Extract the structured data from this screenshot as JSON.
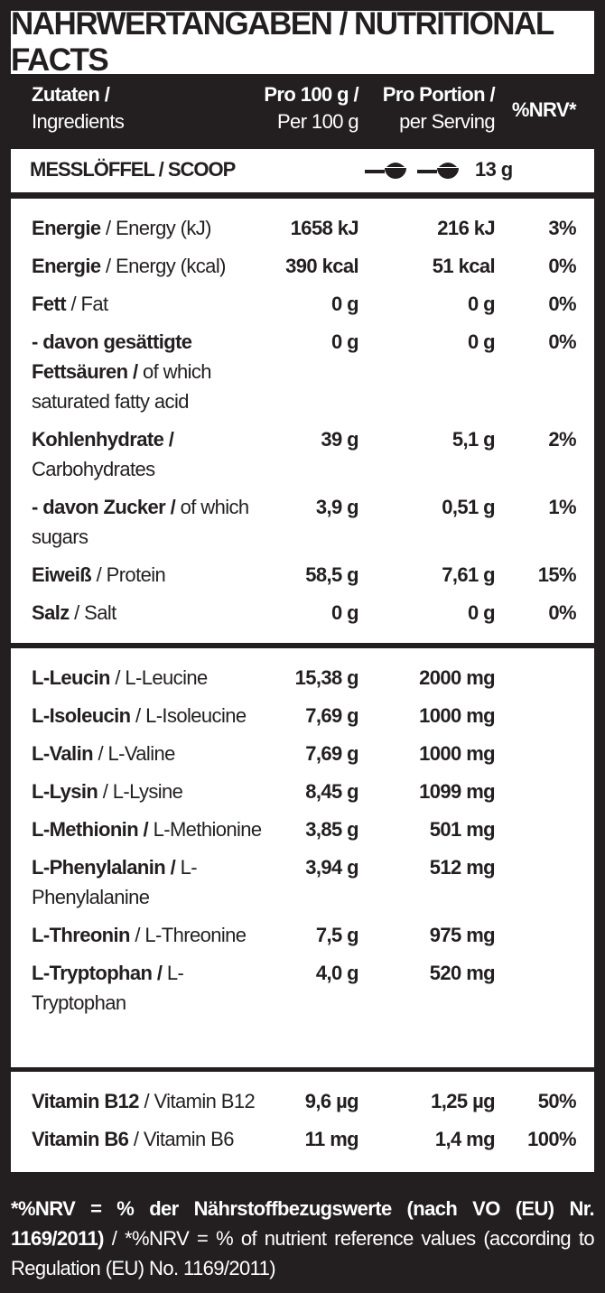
{
  "title": "NÄHRWERTANGABEN / NUTRITIONAL FACTS",
  "header": {
    "ingredients_bold": "Zutaten /",
    "ingredients": "Ingredients",
    "per100_bold": "Pro 100 g /",
    "per100": "Per 100 g",
    "serving_bold": "Pro Portion /",
    "serving": "per Serving",
    "nrv": "%NRV*"
  },
  "scoop": {
    "label": "MESSLÖFFEL / SCOOP",
    "amount": "13 g"
  },
  "sections": [
    {
      "rows": [
        {
          "bold": "Energie",
          "normal": "/ Energy (kJ)",
          "per100": "1658 kJ",
          "serving": "216 kJ",
          "nrv": "3%"
        },
        {
          "bold": "Energie",
          "normal": "/ Energy (kcal)",
          "per100": "390 kcal",
          "serving": "51 kcal",
          "nrv": "0%"
        },
        {
          "bold": "Fett",
          "normal": "/ Fat",
          "per100": "0 g",
          "serving": "0 g",
          "nrv": "0%"
        },
        {
          "bold": "- davon gesättigte Fettsäuren /",
          "normal": "of which saturated fatty acid",
          "per100": "0 g",
          "serving": "0 g",
          "nrv": "0%"
        },
        {
          "bold": "Kohlenhydrate /",
          "normal": "Carbohydrates",
          "per100": "39 g",
          "serving": "5,1 g",
          "nrv": "2%"
        },
        {
          "bold": "- davon Zucker /",
          "normal": "of which sugars",
          "per100": "3,9 g",
          "serving": "0,51 g",
          "nrv": "1%"
        },
        {
          "bold": "Eiweiß",
          "normal": "/ Protein",
          "per100": "58,5 g",
          "serving": "7,61 g",
          "nrv": "15%"
        },
        {
          "bold": "Salz",
          "normal": "/ Salt",
          "per100": "0 g",
          "serving": "0 g",
          "nrv": "0%"
        }
      ]
    },
    {
      "rows": [
        {
          "bold": "L-Leucin",
          "normal": "/ L-Leucine",
          "per100": "15,38 g",
          "serving": "2000 mg"
        },
        {
          "bold": "L-Isoleucin",
          "normal": "/ L-Isoleucine",
          "per100": "7,69 g",
          "serving": "1000 mg"
        },
        {
          "bold": "L-Valin",
          "normal": "/ L-Valine",
          "per100": "7,69 g",
          "serving": "1000 mg"
        },
        {
          "bold": "L-Lysin",
          "normal": "/ L-Lysine",
          "per100": "8,45 g",
          "serving": "1099 mg"
        },
        {
          "bold": "L-Methionin /",
          "normal": "L-Methionine",
          "per100": "3,85 g",
          "serving": "501 mg"
        },
        {
          "bold": "L-Phenylalanin /",
          "normal": "L-Phenylalanine",
          "per100": "3,94 g",
          "serving": "512 mg"
        },
        {
          "bold": "L-Threonin",
          "normal": "/ L-Threonine",
          "per100": "7,5 g",
          "serving": "975 mg"
        },
        {
          "bold": "L-Tryptophan /",
          "normal": "L-Tryptophan",
          "per100": "4,0 g",
          "serving": "520 mg"
        }
      ]
    },
    {
      "rows": [
        {
          "bold": "Vitamin B12",
          "normal": "/ Vitamin B12",
          "per100": "9,6 µg",
          "serving": "1,25 µg",
          "nrv": "50%"
        },
        {
          "bold": "Vitamin B6",
          "normal": "/ Vitamin B6",
          "per100": "11 mg",
          "serving": "1,4 mg",
          "nrv": "100%"
        }
      ]
    }
  ],
  "footnote": {
    "bold": "*%NRV = % der Nährstoffbezugswerte (nach VO (EU) Nr. 1169/2011)",
    "normal": "/ *%NRV = % of nutrient reference values (according to Regulation (EU) No. 1169/2011)"
  }
}
